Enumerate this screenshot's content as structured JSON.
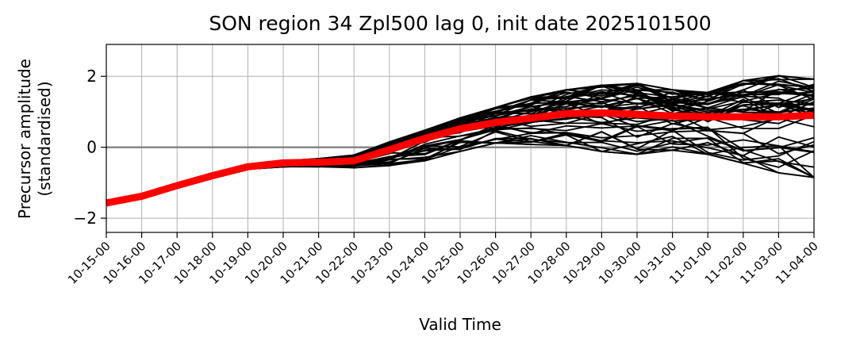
{
  "chart_data": {
    "type": "line",
    "title": "SON region 34 Zpl500 lag 0, init date 2025101500",
    "xlabel": "Valid Time",
    "ylabel_line1": "Precursor amplitude",
    "ylabel_line2": "(standardised)",
    "x": [
      "10-15-00",
      "10-16-00",
      "10-17-00",
      "10-18-00",
      "10-19-00",
      "10-20-00",
      "10-21-00",
      "10-22-00",
      "10-23-00",
      "10-24-00",
      "10-25-00",
      "10-26-00",
      "10-27-00",
      "10-28-00",
      "10-29-00",
      "10-30-00",
      "10-31-00",
      "11-01-00",
      "11-02-00",
      "11-03-00",
      "11-04-00"
    ],
    "ylim": [
      -2.4,
      2.9
    ],
    "yticks": [
      -2,
      0,
      2
    ],
    "ytick_labels": [
      "−2",
      "0",
      "2"
    ],
    "grid": true,
    "zero_line": true,
    "ensemble_count": 50,
    "ensemble_color": "#000000",
    "mean_color": "#ff0000",
    "zero_line_color": "#808080",
    "series": [
      {
        "role": "ensemble-mean",
        "values": [
          -1.57,
          -1.38,
          -1.08,
          -0.8,
          -0.55,
          -0.44,
          -0.42,
          -0.38,
          -0.07,
          0.25,
          0.52,
          0.7,
          0.82,
          0.95,
          0.97,
          0.93,
          0.88,
          0.86,
          0.86,
          0.86,
          0.9
        ]
      }
    ],
    "ensemble_envelope": {
      "lower": [
        null,
        null,
        null,
        null,
        -0.62,
        -0.55,
        -0.55,
        -0.58,
        -0.52,
        -0.38,
        -0.12,
        0.12,
        0.08,
        0.05,
        -0.12,
        -0.2,
        -0.08,
        -0.2,
        -0.45,
        -0.72,
        -0.85
      ],
      "upper": [
        null,
        null,
        null,
        null,
        -0.5,
        -0.38,
        -0.32,
        -0.22,
        0.15,
        0.48,
        0.83,
        1.12,
        1.42,
        1.62,
        1.75,
        1.8,
        1.62,
        1.55,
        1.88,
        2.02,
        1.92
      ]
    }
  }
}
